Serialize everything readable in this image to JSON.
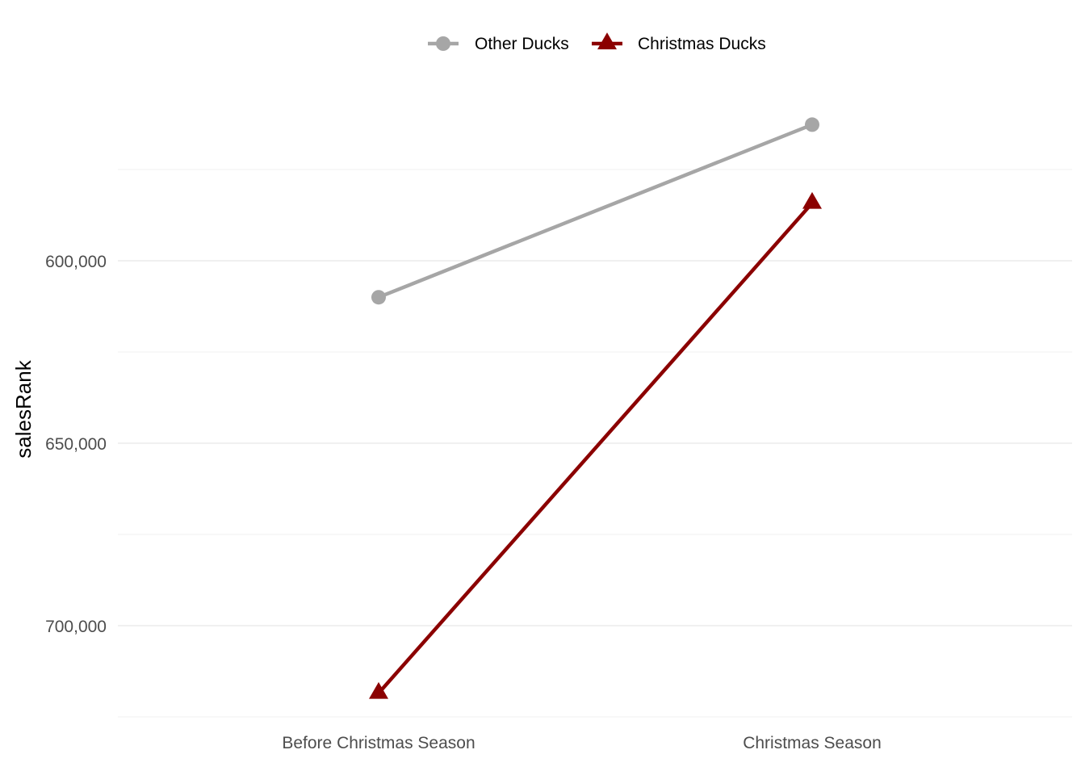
{
  "chart_data": {
    "type": "line",
    "title": "",
    "xlabel": "",
    "ylabel": "salesRank",
    "categories": [
      "Before Christmas Season",
      "Christmas Season"
    ],
    "y_axis_reversed": true,
    "ylim": [
      562500,
      712500
    ],
    "y_ticks": [
      600000,
      650000,
      700000
    ],
    "y_tick_labels": [
      "600,000",
      "650,000",
      "700,000"
    ],
    "grid": true,
    "legend_position": "top",
    "series": [
      {
        "name": "Other Ducks",
        "values": [
          610000,
          562700
        ],
        "color": "#a6a6a6",
        "marker": "circle"
      },
      {
        "name": "Christmas Ducks",
        "values": [
          718500,
          584200
        ],
        "color": "#8b0000",
        "marker": "triangle"
      }
    ]
  }
}
